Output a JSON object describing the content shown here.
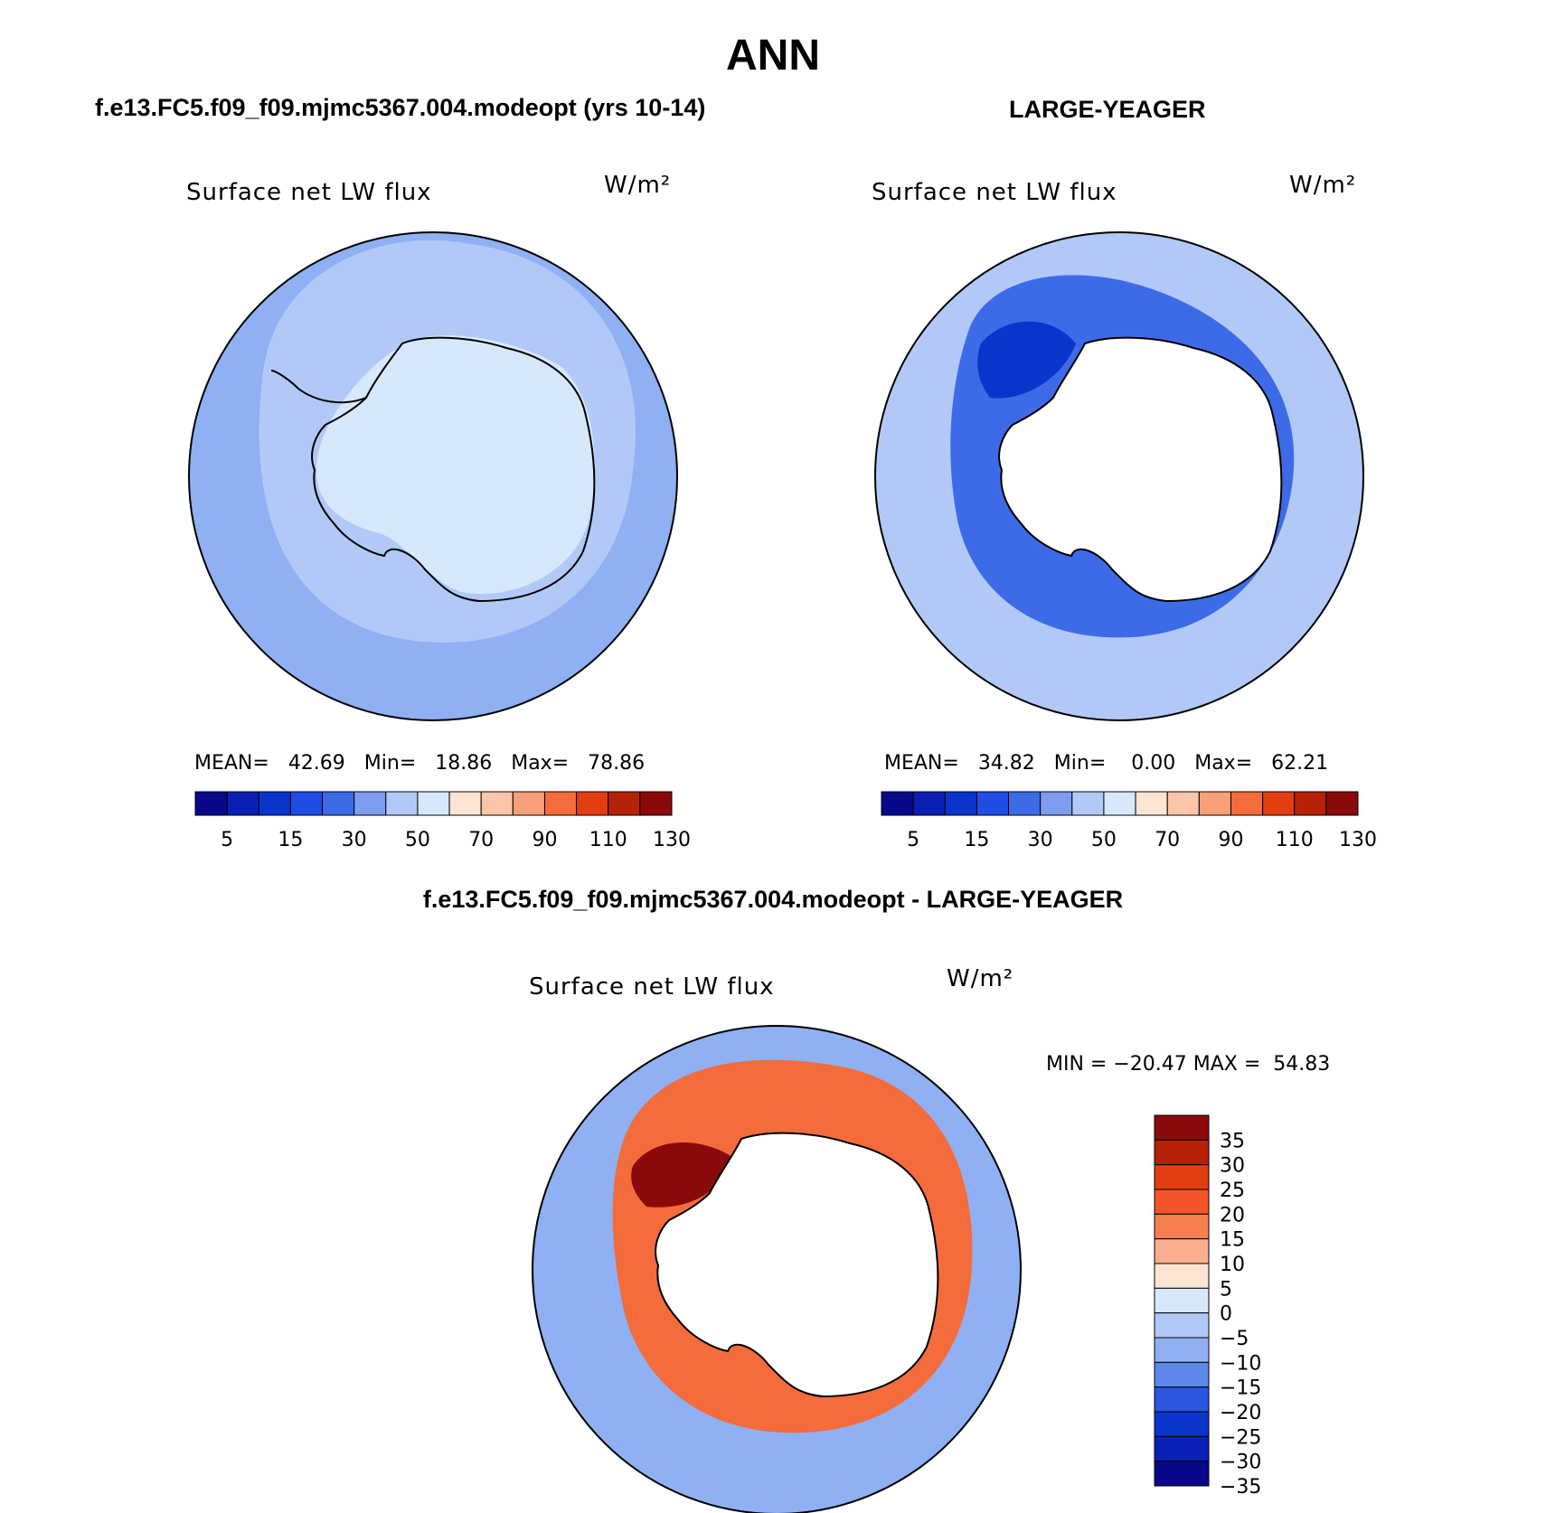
{
  "page_title": "ANN",
  "panels": {
    "model": {
      "header": "f.e13.FC5.f09_f09.mjmc5367.004.modeopt (yrs 10-14)",
      "variable": "Surface net LW flux",
      "units": "W/m²",
      "stats": {
        "mean_label": "MEAN=",
        "mean": "42.69",
        "min_label": "Min=",
        "min": "18.86",
        "max_label": "Max=",
        "max": "78.86"
      }
    },
    "obs": {
      "header": "LARGE-YEAGER",
      "variable": "Surface net LW flux",
      "units": "W/m²",
      "stats": {
        "mean_label": "MEAN=",
        "mean": "34.82",
        "min_label": "Min=",
        "min": "0.00",
        "max_label": "Max=",
        "max": "62.21"
      }
    },
    "diff": {
      "header": "f.e13.FC5.f09_f09.mjmc5367.004.modeopt - LARGE-YEAGER",
      "variable": "Surface net LW flux",
      "units": "W/m²",
      "minmax": "MIN = −20.47 MAX =  54.83"
    }
  },
  "colorbar_abs": {
    "colors": [
      "#08088a",
      "#0a1fb4",
      "#0b34cc",
      "#1e4ee6",
      "#3d6be8",
      "#7c9df0",
      "#b2c9f8",
      "#d8e8fc",
      "#fde5d3",
      "#fac5a8",
      "#f8a07a",
      "#f46b3c",
      "#e33d12",
      "#b62208",
      "#8a0a0a"
    ],
    "labels": [
      "5",
      "15",
      "30",
      "50",
      "70",
      "90",
      "110",
      "130"
    ]
  },
  "colorbar_diff": {
    "colors": [
      "#8a0a0a",
      "#b62208",
      "#e33d12",
      "#f4542a",
      "#f67f50",
      "#f9ae8e",
      "#fde5d3",
      "#d8e8fc",
      "#b2c9f8",
      "#8fb0f2",
      "#5f86ea",
      "#2c55e0",
      "#0b34cc",
      "#0a1fb4",
      "#08088a"
    ],
    "labels": [
      "35",
      "30",
      "25",
      "20",
      "15",
      "10",
      "5",
      "0",
      "−5",
      "−10",
      "−15",
      "−20",
      "−25",
      "−30",
      "−35"
    ]
  },
  "map_colors": {
    "ocean_model": "#9ab8f4",
    "ocean_model_inner": "#b9cffa",
    "ice_model": "#d8e8fc",
    "obs_outer": "#b2c9f8",
    "obs_ring": "#3d6be8",
    "obs_ring_dark": "#0b34cc",
    "obs_land": "#ffffff",
    "diff_outer": "#8fb0f2",
    "diff_ring": "#f46b3c",
    "diff_ring_dark": "#b62208",
    "diff_land": "#ffffff"
  }
}
